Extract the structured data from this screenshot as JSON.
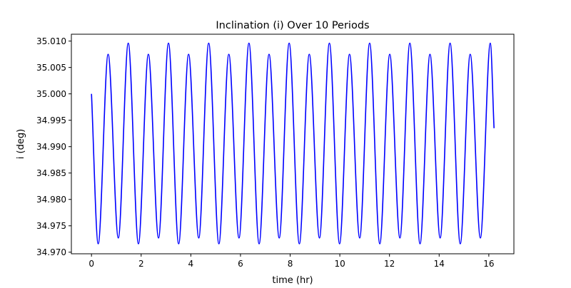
{
  "chart_data": {
    "type": "line",
    "title": "Inclination (i) Over 10 Periods",
    "xlabel": "time (hr)",
    "ylabel": "i (deg)",
    "xlim": [
      -0.81,
      17.01
    ],
    "ylim": [
      34.9697,
      35.0113
    ],
    "xticks": [
      0,
      2,
      4,
      6,
      8,
      10,
      12,
      14,
      16
    ],
    "yticks": [
      34.97,
      34.975,
      34.98,
      34.985,
      34.99,
      34.995,
      35.0,
      35.005,
      35.01
    ],
    "ytick_decimals": 3,
    "grid": false,
    "legend": "none",
    "series": [
      {
        "color": "#0000ff",
        "x": [
          0.0,
          0.27,
          0.67,
          1.08,
          1.48,
          1.89,
          2.29,
          2.7,
          3.1,
          3.51,
          3.91,
          4.32,
          4.72,
          5.13,
          5.53,
          5.94,
          6.34,
          6.75,
          7.15,
          7.56,
          7.96,
          8.37,
          8.77,
          9.18,
          9.58,
          9.99,
          10.39,
          10.8,
          11.2,
          11.61,
          12.01,
          12.42,
          12.82,
          13.23,
          13.63,
          14.04,
          14.44,
          14.85,
          15.25,
          15.66,
          16.06,
          16.21
        ],
        "y": [
          35.0,
          34.9716,
          35.0075,
          34.9727,
          35.0096,
          34.9716,
          35.0075,
          34.9727,
          35.0096,
          34.9716,
          35.0075,
          34.9727,
          35.0096,
          34.9716,
          35.0075,
          34.9727,
          35.0096,
          34.9716,
          35.0075,
          34.9727,
          35.0096,
          34.9716,
          35.0075,
          34.9727,
          35.0096,
          34.9716,
          35.0075,
          34.9727,
          35.0096,
          34.9716,
          35.0075,
          34.9727,
          35.0096,
          34.9716,
          35.0075,
          34.9727,
          35.0096,
          34.9716,
          35.0075,
          34.9727,
          35.0096,
          34.9935
        ]
      }
    ]
  }
}
